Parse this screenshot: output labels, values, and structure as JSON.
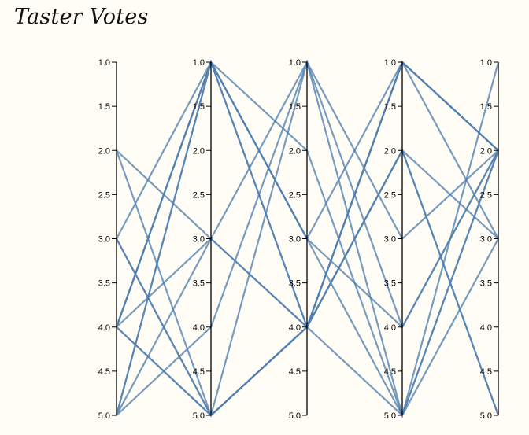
{
  "title": "Taster Votes",
  "chart_data": {
    "type": "parallel_coordinates",
    "title": "Taster Votes",
    "axes_count": 5,
    "ylim": [
      1.0,
      5.0
    ],
    "ticks": [
      "1.0",
      "1.5",
      "2.0",
      "2.5",
      "3.0",
      "3.5",
      "4.0",
      "4.5",
      "5.0"
    ],
    "tick_values": [
      1.0,
      1.5,
      2.0,
      2.5,
      3.0,
      3.5,
      4.0,
      4.5,
      5.0
    ],
    "line_color": "#4f7fb0",
    "axis_color": "#000000",
    "lines": [
      [
        2,
        5,
        4,
        5,
        3
      ],
      [
        2,
        3,
        4,
        1,
        2
      ],
      [
        3,
        1,
        3,
        4,
        2
      ],
      [
        3,
        5,
        1,
        4,
        2
      ],
      [
        4,
        1,
        3,
        5,
        1
      ],
      [
        4,
        1,
        4,
        2,
        5
      ],
      [
        4,
        3,
        1,
        5,
        2
      ],
      [
        4,
        5,
        4,
        1,
        2
      ],
      [
        5,
        1,
        2,
        5,
        2
      ],
      [
        5,
        1,
        4,
        1,
        3
      ],
      [
        5,
        3,
        4,
        2,
        5
      ],
      [
        3,
        5,
        4,
        1,
        2
      ],
      [
        5,
        4,
        1,
        3,
        2
      ],
      [
        4,
        5,
        4,
        2,
        3
      ],
      [
        4,
        1,
        3,
        1,
        2
      ]
    ]
  }
}
